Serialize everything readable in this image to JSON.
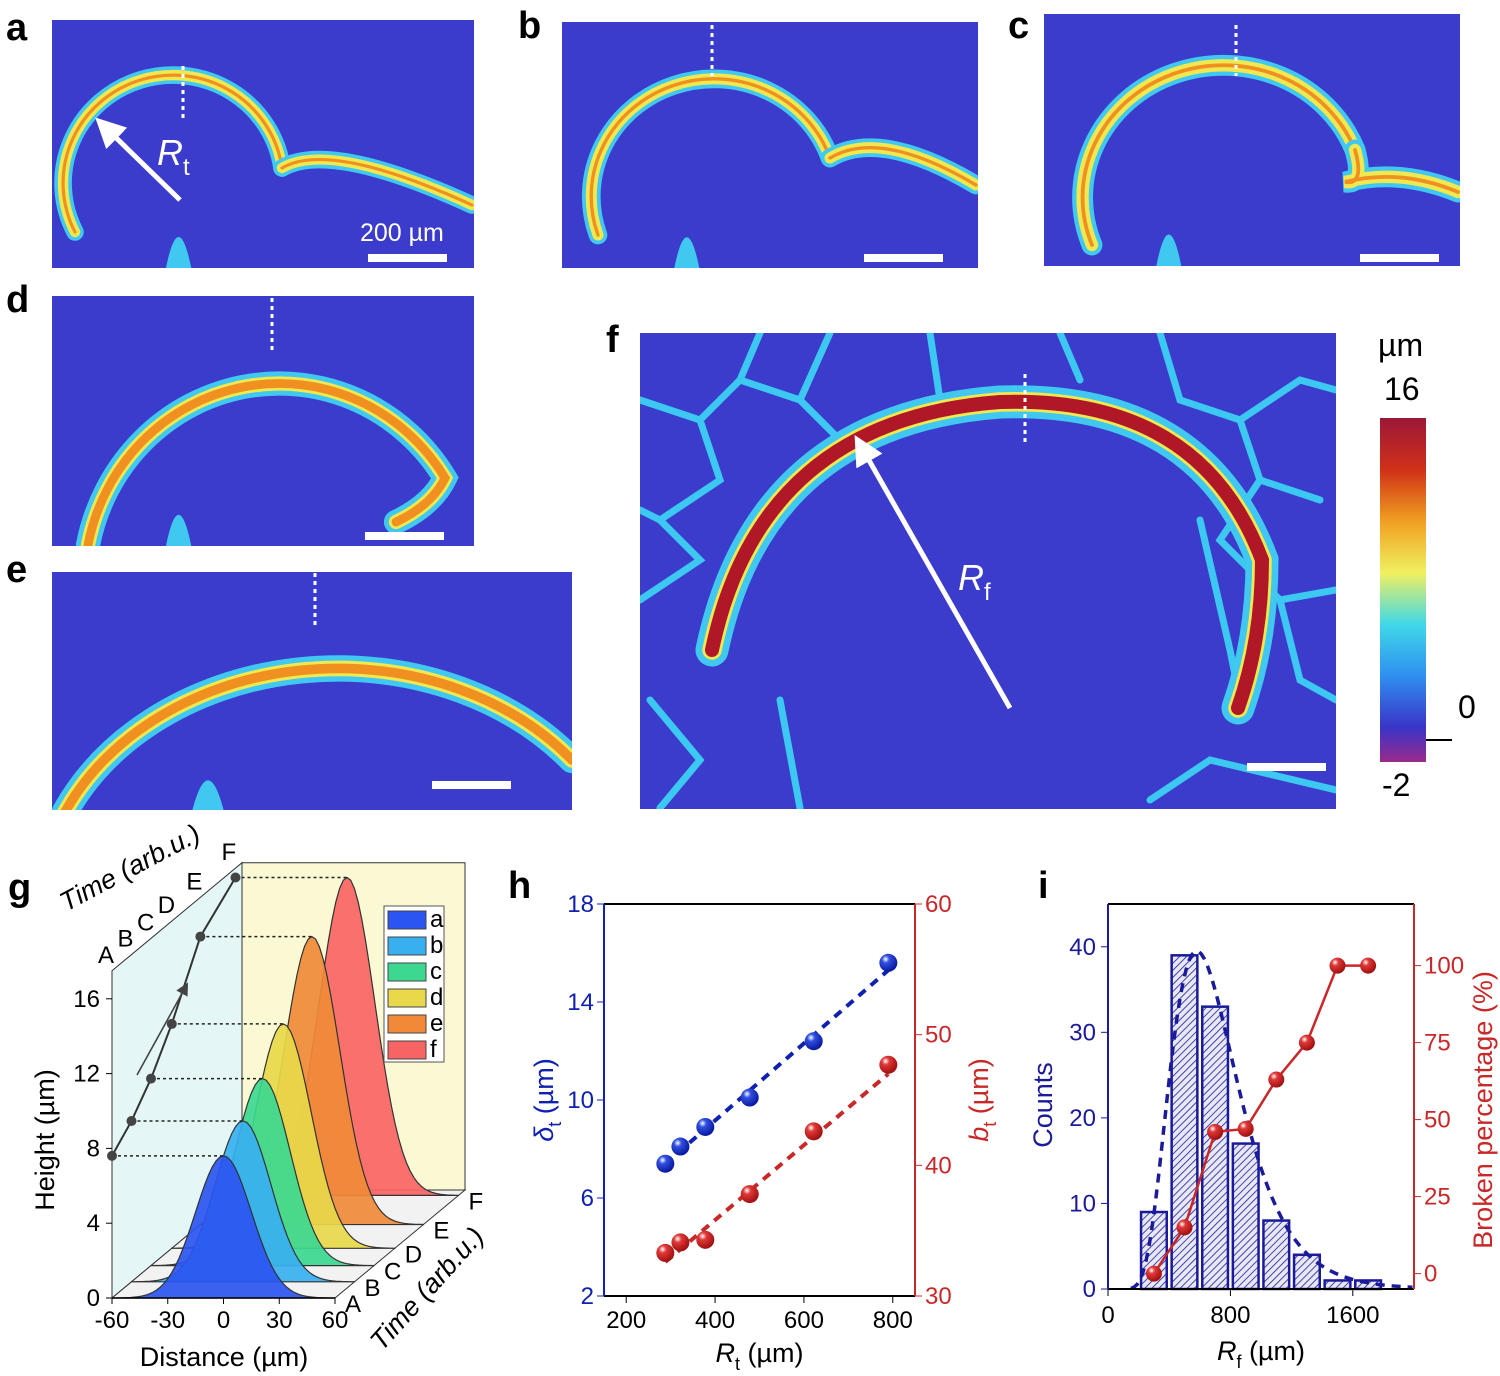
{
  "panel_labels": {
    "a": "a",
    "b": "b",
    "c": "c",
    "d": "d",
    "e": "e",
    "f": "f",
    "g": "g",
    "h": "h",
    "i": "i"
  },
  "maps": {
    "scale_bar_label": "200 µm",
    "rt_label": "R",
    "rt_sub": "t",
    "rf_label": "R",
    "rf_sub": "f",
    "colorbar": {
      "unit": "µm",
      "max": "16",
      "zero": "0",
      "min": "-2",
      "colors": [
        "#9a2a8c",
        "#3a34c8",
        "#2f8ff0",
        "#40d8e8",
        "#f0f060",
        "#f0a020",
        "#d03018",
        "#9c1838"
      ]
    },
    "background_color": "#3b3ccb"
  },
  "chart_data": [
    {
      "panel": "g",
      "type": "area",
      "xlabel": "Distance (µm)",
      "ylabel": "Height (µm)",
      "zlabel": "Time (arb.u.)",
      "xlim": [
        -60,
        60
      ],
      "ylim": [
        0,
        16
      ],
      "xticks": [
        "-60",
        "-30",
        "0",
        "30",
        "60"
      ],
      "yticks": [
        "0",
        "4",
        "8",
        "12",
        "16"
      ],
      "zticks": [
        "A",
        "B",
        "C",
        "D",
        "E",
        "F"
      ],
      "series": [
        {
          "name": "a",
          "time": "A",
          "peak": 7.6,
          "color": "#2b55f0"
        },
        {
          "name": "b",
          "time": "B",
          "peak": 8.6,
          "color": "#38b0f0"
        },
        {
          "name": "c",
          "time": "C",
          "peak": 10.0,
          "color": "#3cd890"
        },
        {
          "name": "d",
          "time": "D",
          "peak": 12.0,
          "color": "#e8d84a"
        },
        {
          "name": "e",
          "time": "E",
          "peak": 15.4,
          "color": "#f08a38"
        },
        {
          "name": "f",
          "time": "F",
          "peak": 17.0,
          "color": "#f86464"
        }
      ],
      "legend": "top-right"
    },
    {
      "panel": "h",
      "type": "scatter",
      "xlabel": "R",
      "xlabel_sub": "t",
      "xlabel_unit": " (µm)",
      "ylabel": "δ",
      "ylabel_sub": "t",
      "ylabel_unit": " (µm)",
      "y2label": "b",
      "y2label_sub": "t",
      "y2label_unit": " (µm)",
      "xlim": [
        150,
        850
      ],
      "ylim": [
        2,
        18
      ],
      "y2lim": [
        30,
        60
      ],
      "xticks": [
        200,
        400,
        600,
        800
      ],
      "yticks": [
        2,
        6,
        10,
        14,
        18
      ],
      "y2ticks": [
        30,
        40,
        50,
        60
      ],
      "x": [
        288,
        322,
        378,
        478,
        622,
        790
      ],
      "series": [
        {
          "axis": "left",
          "color": "#1020b0",
          "values": [
            7.4,
            8.1,
            8.9,
            10.1,
            12.4,
            15.6
          ],
          "fit": [
            7.4,
            15.3
          ]
        },
        {
          "axis": "right",
          "color": "#c82828",
          "values": [
            33.3,
            34.1,
            34.3,
            37.8,
            42.6,
            47.7
          ],
          "fit": [
            32.6,
            47.0
          ]
        }
      ]
    },
    {
      "panel": "i",
      "type": "bar",
      "xlabel": "R",
      "xlabel_sub": "f",
      "xlabel_unit": " (µm)",
      "ylabel": "Counts",
      "y2label": "Broken percentage (%)",
      "xlim": [
        0,
        2000
      ],
      "ylim": [
        0,
        45
      ],
      "y2lim": [
        -5,
        120
      ],
      "xticks": [
        0,
        800,
        1600
      ],
      "yticks": [
        0,
        10,
        20,
        30,
        40
      ],
      "y2ticks": [
        0,
        25,
        50,
        75,
        100
      ],
      "bin_width": 200,
      "bin_centers": [
        300,
        500,
        700,
        900,
        1100,
        1300,
        1500,
        1700
      ],
      "counts": [
        9,
        39,
        33,
        17,
        8,
        4,
        1,
        1
      ],
      "broken_percentage": [
        0,
        15,
        46,
        47,
        63,
        75,
        100,
        100
      ],
      "bar_color": "#1a1a9a",
      "line_color": "#c82828"
    }
  ]
}
